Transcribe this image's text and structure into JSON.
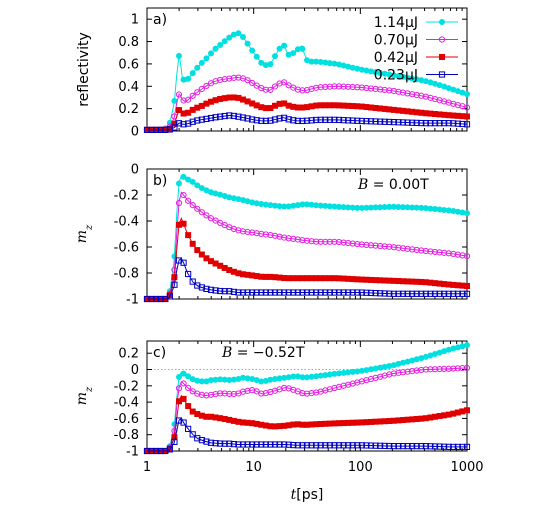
{
  "chart_data": [
    {
      "type": "line",
      "panel_label": "a)",
      "ylabel": "reflectivity",
      "ylim": [
        0,
        1.1
      ],
      "yticks": [
        "0",
        "0.2",
        "0.4",
        "0.6",
        "0.8",
        "1"
      ],
      "ytick_values": [
        0,
        0.2,
        0.4,
        0.6,
        0.8,
        1.0
      ],
      "xscale": "log",
      "xlim": [
        1,
        1000
      ],
      "legend_position": "top-right",
      "series": [
        {
          "name": "1.14μJ",
          "color": "#00e0e0",
          "marker": "filled-circle",
          "x": [
            1,
            1.3,
            1.6,
            1.8,
            1.9,
            2.0,
            2.05,
            2.15,
            2.3,
            2.5,
            2.8,
            3.2,
            3.7,
            4.2,
            5,
            6,
            7,
            7.7,
            8.5,
            10,
            12,
            14,
            17,
            19,
            21,
            24,
            28,
            32,
            40,
            60,
            100,
            200,
            400,
            600,
            800,
            1000
          ],
          "y": [
            0.01,
            0.01,
            0.03,
            0.25,
            0.5,
            0.68,
            0.62,
            0.47,
            0.44,
            0.48,
            0.54,
            0.6,
            0.66,
            0.72,
            0.78,
            0.84,
            0.88,
            0.86,
            0.8,
            0.7,
            0.6,
            0.58,
            0.72,
            0.78,
            0.68,
            0.7,
            0.76,
            0.62,
            0.62,
            0.6,
            0.55,
            0.5,
            0.45,
            0.4,
            0.36,
            0.33
          ]
        },
        {
          "name": "0.70μJ",
          "color": "#e020e0",
          "marker": "open-circle",
          "x": [
            1,
            1.3,
            1.6,
            1.8,
            1.9,
            2.0,
            2.05,
            2.15,
            2.3,
            2.5,
            2.8,
            3.2,
            3.7,
            4.2,
            5,
            6,
            7,
            8,
            9,
            10,
            12,
            14,
            17,
            19,
            22,
            26,
            30,
            40,
            60,
            100,
            200,
            400,
            700,
            1000
          ],
          "y": [
            0.01,
            0.01,
            0.02,
            0.12,
            0.25,
            0.33,
            0.32,
            0.28,
            0.26,
            0.29,
            0.33,
            0.37,
            0.41,
            0.44,
            0.46,
            0.47,
            0.48,
            0.47,
            0.45,
            0.42,
            0.38,
            0.36,
            0.42,
            0.44,
            0.4,
            0.37,
            0.36,
            0.39,
            0.4,
            0.39,
            0.36,
            0.31,
            0.25,
            0.21
          ]
        },
        {
          "name": "0.42μJ",
          "color": "#e00000",
          "marker": "filled-square",
          "x": [
            1,
            1.3,
            1.6,
            1.8,
            1.9,
            2.0,
            2.05,
            2.15,
            2.3,
            2.5,
            2.8,
            3.2,
            3.7,
            4.2,
            5,
            6,
            7,
            8,
            9,
            10,
            12,
            14,
            17,
            19,
            22,
            26,
            30,
            40,
            60,
            100,
            200,
            400,
            700,
            1000
          ],
          "y": [
            0.01,
            0.01,
            0.01,
            0.06,
            0.13,
            0.19,
            0.19,
            0.16,
            0.15,
            0.17,
            0.2,
            0.22,
            0.25,
            0.27,
            0.29,
            0.3,
            0.3,
            0.28,
            0.26,
            0.24,
            0.21,
            0.2,
            0.24,
            0.25,
            0.22,
            0.21,
            0.21,
            0.23,
            0.23,
            0.22,
            0.19,
            0.16,
            0.14,
            0.13
          ]
        },
        {
          "name": "0.23μJ",
          "color": "#0000c0",
          "marker": "open-square",
          "x": [
            1,
            1.3,
            1.6,
            1.8,
            1.9,
            2.0,
            2.05,
            2.15,
            2.3,
            2.5,
            2.8,
            3.2,
            3.7,
            4.2,
            5,
            6,
            7,
            8,
            9,
            10,
            12,
            14,
            17,
            19,
            22,
            26,
            30,
            40,
            60,
            100,
            200,
            400,
            700,
            1000
          ],
          "y": [
            0.01,
            0.01,
            0.01,
            0.03,
            0.05,
            0.07,
            0.07,
            0.06,
            0.06,
            0.07,
            0.09,
            0.1,
            0.11,
            0.12,
            0.13,
            0.14,
            0.13,
            0.12,
            0.11,
            0.1,
            0.09,
            0.09,
            0.11,
            0.12,
            0.1,
            0.09,
            0.09,
            0.1,
            0.1,
            0.09,
            0.08,
            0.07,
            0.07,
            0.06
          ]
        }
      ]
    },
    {
      "type": "line",
      "panel_label": "b)",
      "ylabel": "m_z",
      "annotation_prefix": "B",
      "annotation_value": " = 0.00T",
      "ylim": [
        -1,
        0
      ],
      "yticks": [
        "0",
        "-0.2",
        "-0.4",
        "-0.6",
        "-0.8",
        "-1"
      ],
      "ytick_values": [
        0,
        -0.2,
        -0.4,
        -0.6,
        -0.8,
        -1
      ],
      "xscale": "log",
      "xlim": [
        1,
        1000
      ],
      "series": [
        {
          "name": "1.14μJ",
          "color": "#00e0e0",
          "marker": "filled-circle",
          "x": [
            1,
            1.3,
            1.6,
            1.8,
            1.9,
            2.0,
            2.1,
            2.2,
            2.4,
            2.7,
            3,
            3.5,
            4,
            5,
            6,
            7,
            8,
            10,
            12,
            15,
            20,
            25,
            30,
            40,
            60,
            100,
            200,
            400,
            700,
            1000
          ],
          "y": [
            -1,
            -1,
            -1,
            -0.7,
            -0.35,
            -0.1,
            -0.05,
            -0.06,
            -0.08,
            -0.1,
            -0.13,
            -0.16,
            -0.18,
            -0.2,
            -0.22,
            -0.23,
            -0.24,
            -0.26,
            -0.27,
            -0.28,
            -0.29,
            -0.28,
            -0.27,
            -0.28,
            -0.29,
            -0.3,
            -0.29,
            -0.3,
            -0.32,
            -0.34
          ]
        },
        {
          "name": "0.70μJ",
          "color": "#e020e0",
          "marker": "open-circle",
          "x": [
            1,
            1.3,
            1.6,
            1.8,
            1.9,
            2.0,
            2.1,
            2.2,
            2.4,
            2.7,
            3,
            3.5,
            4,
            5,
            6,
            7,
            8,
            10,
            12,
            15,
            20,
            25,
            30,
            40,
            60,
            100,
            200,
            400,
            700,
            1000
          ],
          "y": [
            -1,
            -1,
            -1,
            -0.8,
            -0.5,
            -0.25,
            -0.18,
            -0.2,
            -0.24,
            -0.28,
            -0.31,
            -0.35,
            -0.38,
            -0.42,
            -0.45,
            -0.47,
            -0.48,
            -0.49,
            -0.5,
            -0.51,
            -0.53,
            -0.54,
            -0.55,
            -0.56,
            -0.56,
            -0.58,
            -0.6,
            -0.63,
            -0.65,
            -0.67
          ]
        },
        {
          "name": "0.42μJ",
          "color": "#e00000",
          "marker": "filled-square",
          "x": [
            1,
            1.3,
            1.6,
            1.8,
            1.9,
            2.0,
            2.1,
            2.2,
            2.4,
            2.7,
            3,
            3.5,
            4,
            5,
            6,
            7,
            8,
            10,
            12,
            15,
            20,
            25,
            30,
            40,
            60,
            100,
            200,
            400,
            700,
            1000
          ],
          "y": [
            -1,
            -1,
            -1,
            -0.85,
            -0.62,
            -0.42,
            -0.38,
            -0.42,
            -0.5,
            -0.58,
            -0.63,
            -0.68,
            -0.71,
            -0.75,
            -0.78,
            -0.8,
            -0.81,
            -0.82,
            -0.83,
            -0.83,
            -0.84,
            -0.84,
            -0.84,
            -0.84,
            -0.84,
            -0.85,
            -0.86,
            -0.87,
            -0.89,
            -0.9
          ]
        },
        {
          "name": "0.23μJ",
          "color": "#0000c0",
          "marker": "open-square",
          "x": [
            1,
            1.3,
            1.6,
            1.8,
            1.9,
            2.0,
            2.1,
            2.2,
            2.4,
            2.7,
            3,
            3.5,
            4,
            5,
            6,
            7,
            8,
            10,
            12,
            15,
            20,
            25,
            30,
            40,
            60,
            100,
            200,
            400,
            700,
            1000
          ],
          "y": [
            -1,
            -1,
            -1,
            -0.9,
            -0.78,
            -0.7,
            -0.69,
            -0.72,
            -0.8,
            -0.87,
            -0.9,
            -0.92,
            -0.93,
            -0.94,
            -0.94,
            -0.95,
            -0.95,
            -0.95,
            -0.95,
            -0.95,
            -0.95,
            -0.95,
            -0.95,
            -0.95,
            -0.95,
            -0.95,
            -0.96,
            -0.96,
            -0.96,
            -0.96
          ]
        }
      ]
    },
    {
      "type": "line",
      "panel_label": "c)",
      "ylabel": "m_z",
      "annotation_prefix": "B",
      "annotation_value": " = −0.52T",
      "ylim": [
        -1,
        0.35
      ],
      "yticks": [
        "0.2",
        "0",
        "-0.2",
        "-0.4",
        "-0.6",
        "-0.8",
        "-1"
      ],
      "ytick_values": [
        0.2,
        0,
        -0.2,
        -0.4,
        -0.6,
        -0.8,
        -1
      ],
      "zero_line": true,
      "xscale": "log",
      "xlim": [
        1,
        1000
      ],
      "series": [
        {
          "name": "1.14μJ",
          "color": "#00e0e0",
          "marker": "filled-circle",
          "x": [
            1,
            1.3,
            1.6,
            1.8,
            1.9,
            2.0,
            2.1,
            2.2,
            2.4,
            2.7,
            3,
            3.5,
            4,
            5,
            6,
            7,
            8,
            10,
            12,
            15,
            20,
            25,
            30,
            40,
            60,
            100,
            200,
            400,
            700,
            1000
          ],
          "y": [
            -1,
            -1,
            -1,
            -0.7,
            -0.35,
            -0.08,
            -0.03,
            -0.05,
            -0.08,
            -0.12,
            -0.14,
            -0.15,
            -0.13,
            -0.12,
            -0.13,
            -0.12,
            -0.1,
            -0.12,
            -0.15,
            -0.12,
            -0.1,
            -0.08,
            -0.1,
            -0.08,
            -0.05,
            -0.02,
            0.05,
            0.15,
            0.25,
            0.3
          ]
        },
        {
          "name": "0.70μJ",
          "color": "#e020e0",
          "marker": "open-circle",
          "x": [
            1,
            1.3,
            1.6,
            1.8,
            1.9,
            2.0,
            2.1,
            2.2,
            2.4,
            2.7,
            3,
            3.5,
            4,
            5,
            6,
            7,
            8,
            10,
            12,
            15,
            20,
            25,
            30,
            40,
            60,
            100,
            200,
            400,
            700,
            1000
          ],
          "y": [
            -1,
            -1,
            -1,
            -0.78,
            -0.45,
            -0.22,
            -0.15,
            -0.17,
            -0.22,
            -0.27,
            -0.3,
            -0.32,
            -0.31,
            -0.29,
            -0.3,
            -0.3,
            -0.27,
            -0.25,
            -0.3,
            -0.27,
            -0.22,
            -0.26,
            -0.3,
            -0.28,
            -0.22,
            -0.15,
            -0.05,
            0,
            0.01,
            0.02
          ]
        },
        {
          "name": "0.42μJ",
          "color": "#e00000",
          "marker": "filled-square",
          "x": [
            1,
            1.3,
            1.6,
            1.8,
            1.9,
            2.0,
            2.1,
            2.2,
            2.4,
            2.7,
            3,
            3.5,
            4,
            5,
            6,
            7,
            8,
            10,
            12,
            15,
            20,
            25,
            30,
            40,
            60,
            100,
            200,
            400,
            700,
            1000
          ],
          "y": [
            -1,
            -1,
            -1,
            -0.85,
            -0.6,
            -0.38,
            -0.32,
            -0.36,
            -0.44,
            -0.52,
            -0.55,
            -0.58,
            -0.58,
            -0.6,
            -0.62,
            -0.64,
            -0.65,
            -0.66,
            -0.68,
            -0.7,
            -0.69,
            -0.67,
            -0.68,
            -0.67,
            -0.66,
            -0.65,
            -0.63,
            -0.6,
            -0.55,
            -0.5
          ]
        },
        {
          "name": "0.23μJ",
          "color": "#0000c0",
          "marker": "open-square",
          "x": [
            1,
            1.3,
            1.6,
            1.8,
            1.9,
            2.0,
            2.1,
            2.2,
            2.4,
            2.7,
            3,
            3.5,
            4,
            5,
            6,
            7,
            8,
            10,
            12,
            15,
            20,
            25,
            30,
            40,
            60,
            100,
            200,
            400,
            700,
            1000
          ],
          "y": [
            -1,
            -1,
            -1,
            -0.9,
            -0.75,
            -0.62,
            -0.6,
            -0.65,
            -0.72,
            -0.8,
            -0.85,
            -0.88,
            -0.9,
            -0.91,
            -0.91,
            -0.92,
            -0.92,
            -0.92,
            -0.92,
            -0.92,
            -0.92,
            -0.93,
            -0.93,
            -0.93,
            -0.93,
            -0.93,
            -0.94,
            -0.94,
            -0.95,
            -0.95
          ]
        }
      ]
    }
  ],
  "shared": {
    "xlabel_var": "t",
    "xlabel_unit": "[ps]",
    "xticks": [
      "1",
      "10",
      "100",
      "1000"
    ],
    "xtick_values": [
      1,
      10,
      100,
      1000
    ]
  }
}
